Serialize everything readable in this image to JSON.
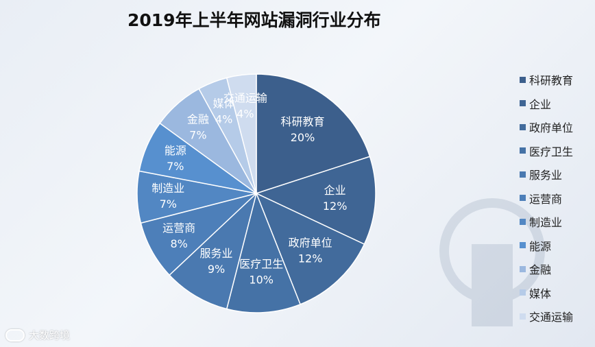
{
  "chart_data": {
    "type": "pie",
    "title": "2019年上半年网站漏洞行业分布",
    "categories": [
      "科研教育",
      "企业",
      "政府单位",
      "医疗卫生",
      "服务业",
      "运营商",
      "制造业",
      "能源",
      "金融",
      "媒体",
      "交通运输"
    ],
    "values": [
      20,
      12,
      12,
      10,
      9,
      8,
      7,
      7,
      7,
      4,
      4
    ],
    "value_labels": [
      "20%",
      "12%",
      "12%",
      "10%",
      "9%",
      "8%",
      "7%",
      "7%",
      "7%",
      "4%",
      "4%"
    ],
    "colors": [
      "#3c5f8c",
      "#3f6594",
      "#426b9c",
      "#4572a6",
      "#4a79b0",
      "#4d7fb9",
      "#5287c3",
      "#5790cf",
      "#9bb8df",
      "#b5cbe8",
      "#cfdcef"
    ],
    "label_colors": [
      "#ffffff",
      "#ffffff",
      "#ffffff",
      "#ffffff",
      "#ffffff",
      "#ffffff",
      "#ffffff",
      "#ffffff",
      "#ffffff",
      "#ffffff",
      "#ffffff"
    ],
    "legend_position": "right",
    "start_angle": "top, clockwise"
  },
  "watermark": {
    "text": "大数跨境"
  }
}
